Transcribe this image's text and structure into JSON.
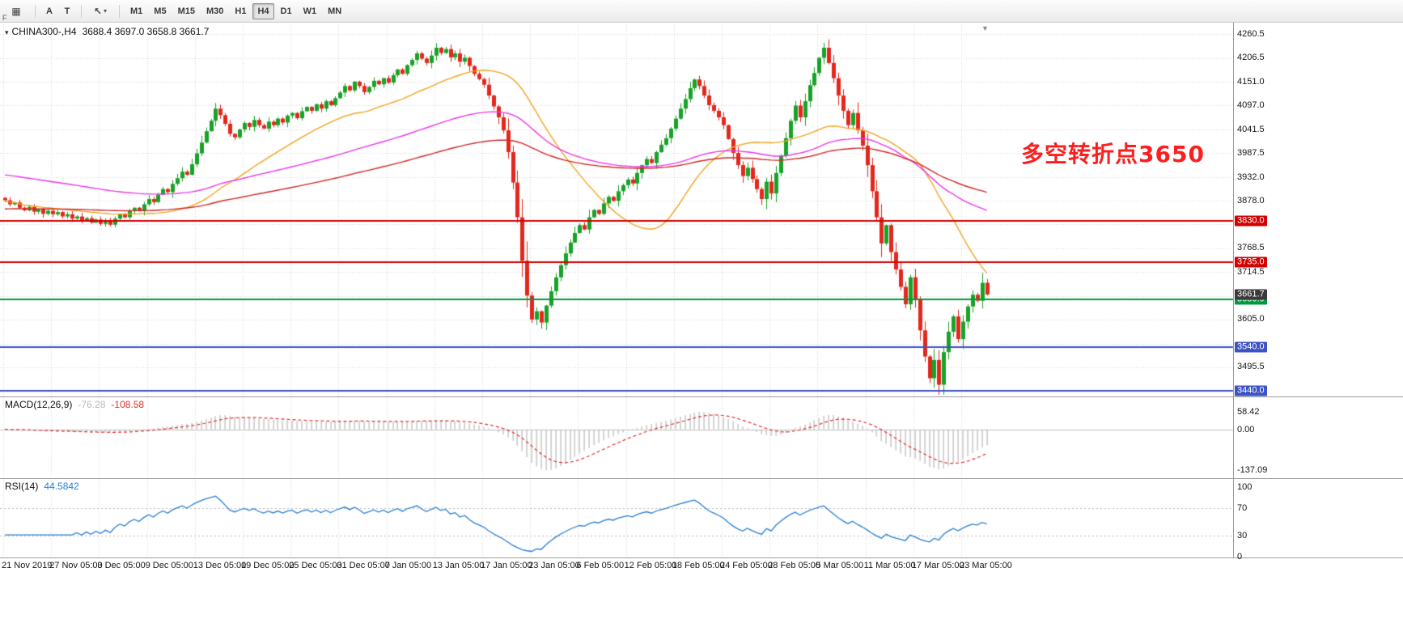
{
  "toolbar": {
    "corner_label": "F",
    "annotate_button": "A",
    "text_button": "T",
    "timeframes": [
      "M1",
      "M5",
      "M15",
      "M30",
      "H1",
      "H4",
      "D1",
      "W1",
      "MN"
    ],
    "active_timeframe": "H4"
  },
  "icons": {
    "window": "▦",
    "chart_dropdown": "▾",
    "cursor_tool": "↖",
    "caret": "▾",
    "shift_marker": "▼"
  },
  "chart": {
    "title": "CHINA300-,H4",
    "ohlc_text": "3688.4 3697.0 3658.8 3661.7",
    "annotation": "多空转折点3650",
    "annotation_color": "#fb1f1f",
    "current_price_label": "3661.7",
    "current_price_chip_color": "#3a3a3a"
  },
  "macd_panel": {
    "label": "MACD(12,26,9)",
    "main_value": "-76.28",
    "signal_value": "-108.58",
    "tick_labels": [
      "58.42",
      "0.00",
      "-137.09"
    ],
    "tick_values": [
      58.42,
      0,
      -137.09
    ],
    "histogram_color": "#b9b9b9",
    "signal_color": "#e22f2f"
  },
  "rsi_panel": {
    "label": "RSI(14)",
    "value": "44.5842",
    "tick_labels": [
      "100",
      "70",
      "30",
      "0"
    ],
    "tick_values": [
      100,
      70,
      30,
      0
    ],
    "level_lines": [
      70,
      30
    ],
    "line_color": "#2a7fd4"
  },
  "chart_data": {
    "type": "candlestick",
    "symbol": "CHINA300-",
    "timeframe": "H4",
    "up_color": "#18a327",
    "down_color": "#e3271d",
    "y_axis": {
      "ticks": [
        4260.5,
        4206.5,
        4151.0,
        4097.0,
        4041.5,
        3987.5,
        3932.0,
        3878.0,
        3768.5,
        3714.5,
        3605.0,
        3495.5
      ],
      "range": {
        "min": 3427,
        "max": 4283
      },
      "grid_top": 4260.5,
      "grid_step": 54.75
    },
    "x_labels": [
      "21 Nov 2019",
      "27 Nov 05:00",
      "3 Dec 05:00",
      "9 Dec 05:00",
      "13 Dec 05:00",
      "19 Dec 05:00",
      "25 Dec 05:00",
      "31 Dec 05:00",
      "7 Jan 05:00",
      "13 Jan 05:00",
      "17 Jan 05:00",
      "23 Jan 05:00",
      "6 Feb 05:00",
      "12 Feb 05:00",
      "18 Feb 05:00",
      "24 Feb 05:00",
      "28 Feb 05:00",
      "5 Mar 05:00",
      "11 Mar 05:00",
      "17 Mar 05:00",
      "23 Mar 05:00"
    ],
    "horizontal_levels": [
      {
        "value": 3830.0,
        "color": "#d20000"
      },
      {
        "value": 3735.0,
        "color": "#d20000"
      },
      {
        "value": 3650.0,
        "color": "#009a3e"
      },
      {
        "value": 3540.0,
        "color": "#3d53c5"
      },
      {
        "value": 3440.0,
        "color": "#3d53c5"
      }
    ],
    "current_price": 3661.7,
    "closes": [
      3878,
      3869,
      3873,
      3861,
      3855,
      3863,
      3852,
      3858,
      3847,
      3854,
      3846,
      3851,
      3841,
      3846,
      3836,
      3841,
      3830,
      3837,
      3827,
      3834,
      3824,
      3832,
      3822,
      3836,
      3846,
      3839,
      3853,
      3861,
      3854,
      3869,
      3881,
      3874,
      3891,
      3904,
      3897,
      3916,
      3929,
      3944,
      3937,
      3961,
      3986,
      4011,
      4037,
      4061,
      4089,
      4074,
      4054,
      4031,
      4023,
      4041,
      4056,
      4047,
      4063,
      4051,
      4043,
      4059,
      4051,
      4066,
      4057,
      4073,
      4079,
      4067,
      4083,
      4093,
      4084,
      4099,
      4089,
      4106,
      4097,
      4113,
      4126,
      4141,
      4131,
      4151,
      4141,
      4127,
      4139,
      4153,
      4145,
      4159,
      4149,
      4166,
      4179,
      4169,
      4189,
      4201,
      4216,
      4204,
      4194,
      4211,
      4229,
      4217,
      4226,
      4207,
      4216,
      4197,
      4206,
      4187,
      4169,
      4157,
      4144,
      4119,
      4094,
      4069,
      4039,
      3989,
      3919,
      3839,
      3739,
      3659,
      3604,
      3623,
      3597,
      3636,
      3669,
      3701,
      3729,
      3756,
      3781,
      3803,
      3821,
      3811,
      3839,
      3856,
      3847,
      3871,
      3886,
      3877,
      3899,
      3913,
      3926,
      3917,
      3941,
      3959,
      3973,
      3964,
      3989,
      4006,
      4021,
      4043,
      4066,
      4089,
      4111,
      4136,
      4156,
      4141,
      4119,
      4097,
      4084,
      4069,
      4051,
      4019,
      3987,
      3959,
      3934,
      3953,
      3927,
      3904,
      3881,
      3921,
      3894,
      3941,
      3981,
      4021,
      4061,
      4096,
      4069,
      4106,
      4143,
      4171,
      4206,
      4229,
      4194,
      4159,
      4119,
      4084,
      4051,
      4079,
      4039,
      4004,
      3959,
      3899,
      3839,
      3779,
      3821,
      3759,
      3719,
      3679,
      3639,
      3701,
      3649,
      3579,
      3519,
      3469,
      3511,
      3454,
      3529,
      3576,
      3611,
      3559,
      3599,
      3634,
      3661,
      3647,
      3688.4,
      3661.7
    ],
    "last_ohlc": {
      "open": 3688.4,
      "high": 3697.0,
      "low": 3658.8,
      "close": 3661.7
    },
    "moving_averages": [
      {
        "type": "sma",
        "period": 30,
        "color": "#f2a41f"
      },
      {
        "type": "ema",
        "period": 89,
        "color": "#ea38ea",
        "seed": 3938
      },
      {
        "type": "ema",
        "period": 150,
        "color": "#d22727",
        "seed": 3858
      }
    ],
    "indicators": {
      "macd": {
        "fast": 12,
        "slow": 26,
        "signal": 9,
        "display_max": 58.42,
        "display_min": -137.09
      },
      "rsi": {
        "period": 14
      }
    }
  }
}
